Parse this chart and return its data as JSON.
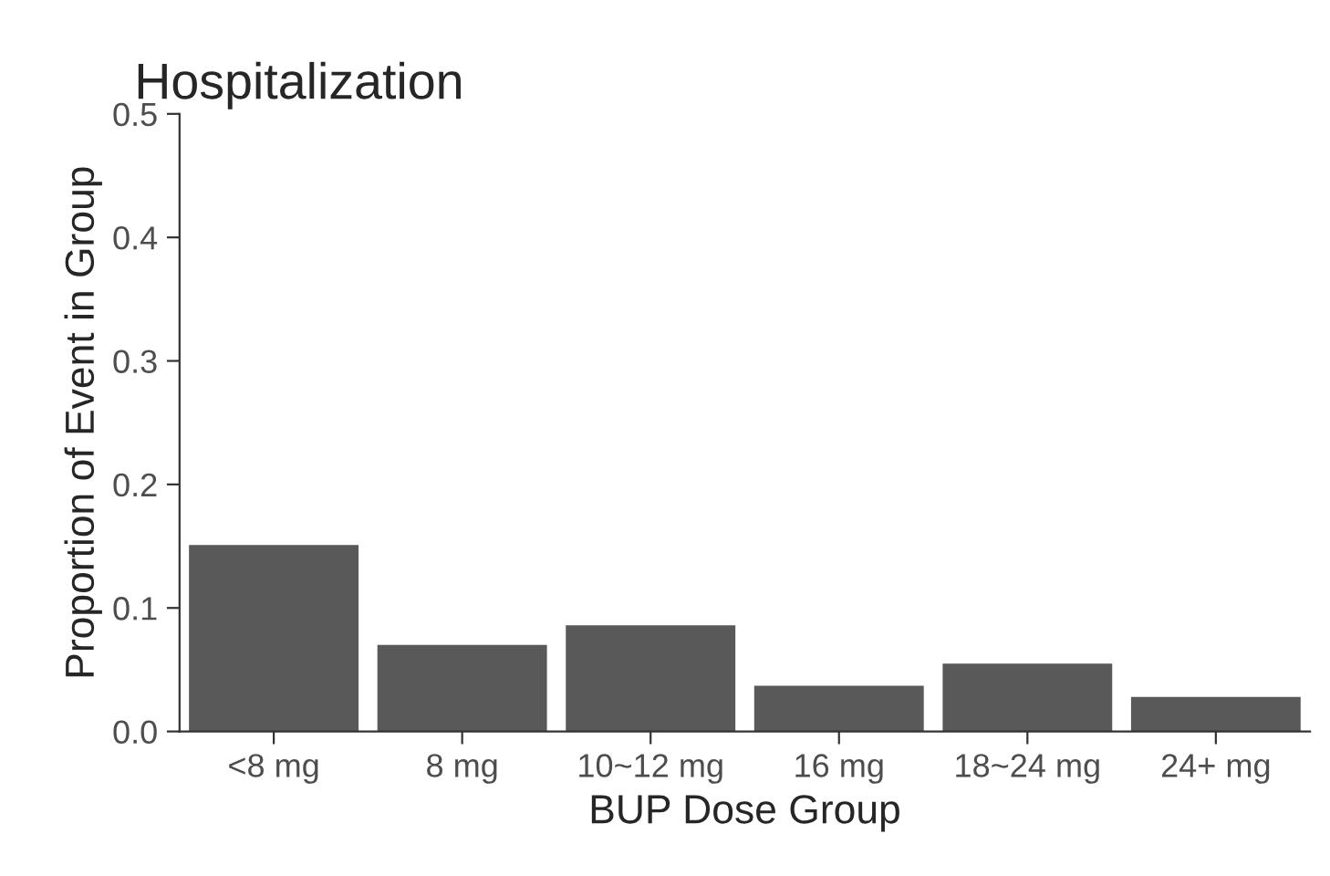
{
  "chart_data": {
    "type": "bar",
    "title": "Hospitalization",
    "xlabel": "BUP Dose Group",
    "ylabel": "Proportion of Event in Group",
    "categories": [
      "<8 mg",
      "8 mg",
      "10~12 mg",
      "16 mg",
      "18~24 mg",
      "24+ mg"
    ],
    "values": [
      0.151,
      0.07,
      0.086,
      0.037,
      0.055,
      0.028
    ],
    "color": "#595959",
    "ylim": [
      0,
      0.5
    ],
    "yticks": [
      {
        "value": 0,
        "label": "0.0"
      },
      {
        "value": 0.1,
        "label": "0.1"
      },
      {
        "value": 0.2,
        "label": "0.2"
      },
      {
        "value": 0.3,
        "label": "0.3"
      },
      {
        "value": 0.4,
        "label": "0.4"
      },
      {
        "value": 0.5,
        "label": "0.5"
      }
    ],
    "grid": false
  }
}
